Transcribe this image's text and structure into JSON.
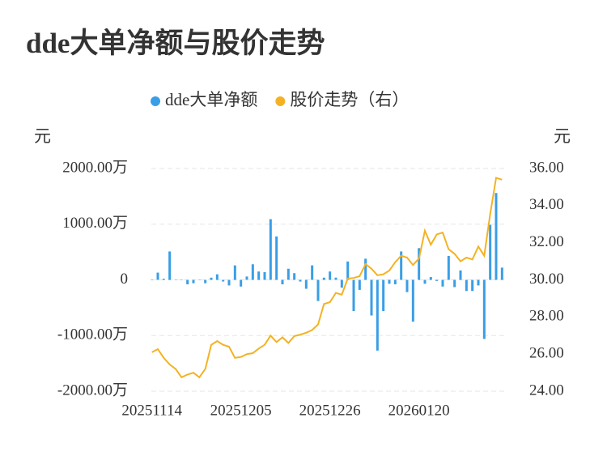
{
  "chart_data": {
    "type": "bar",
    "title": "dde大单净额与股价走势",
    "y_label": "元",
    "y2_label": "元",
    "categories": [
      "20251114",
      null,
      null,
      null,
      null,
      null,
      null,
      null,
      null,
      null,
      null,
      null,
      null,
      null,
      null,
      "20251205",
      null,
      null,
      null,
      null,
      null,
      null,
      null,
      null,
      null,
      null,
      null,
      null,
      null,
      null,
      "20251226",
      null,
      null,
      null,
      null,
      null,
      null,
      null,
      null,
      null,
      null,
      null,
      null,
      null,
      null,
      "20260120",
      null,
      null,
      null,
      null,
      null,
      null,
      null,
      null,
      null,
      null,
      null,
      null,
      null,
      null
    ],
    "series": [
      {
        "name": "dde大单净额",
        "type": "bar",
        "color": "#3a9ee6",
        "values": [
          0,
          130,
          20,
          510,
          0,
          0,
          -80,
          -60,
          0,
          -60,
          40,
          100,
          -30,
          -100,
          260,
          -120,
          60,
          280,
          150,
          140,
          1090,
          780,
          -80,
          200,
          120,
          -30,
          -160,
          260,
          -380,
          40,
          150,
          40,
          -140,
          330,
          -560,
          -180,
          380,
          -640,
          -1270,
          -560,
          -70,
          -80,
          510,
          -220,
          -750,
          570,
          -70,
          50,
          -20,
          -120,
          430,
          -130,
          170,
          -200,
          -200,
          -100,
          -1060,
          990,
          1560,
          220
        ]
      },
      {
        "name": "股价走势（右）",
        "type": "line",
        "axis": "y2",
        "color": "#f4b223",
        "values": [
          26.1,
          26.27,
          25.8,
          25.44,
          25.2,
          24.75,
          24.9,
          25.0,
          24.75,
          25.2,
          26.5,
          26.7,
          26.5,
          26.4,
          25.8,
          25.85,
          26.0,
          26.05,
          26.3,
          26.5,
          27.0,
          26.65,
          26.9,
          26.6,
          26.97,
          27.05,
          27.15,
          27.3,
          27.6,
          28.7,
          28.8,
          29.3,
          29.2,
          30.07,
          30.1,
          30.2,
          30.85,
          30.6,
          30.25,
          30.3,
          30.5,
          30.95,
          31.3,
          31.2,
          30.8,
          31.15,
          32.65,
          31.9,
          32.45,
          32.55,
          31.65,
          31.4,
          31.0,
          31.2,
          31.1,
          31.8,
          31.3,
          33.55,
          35.5,
          35.4
        ]
      }
    ],
    "ylim": [
      -2000,
      2000
    ],
    "yticks": [
      {
        "value": -2000,
        "label": "-2000.00万"
      },
      {
        "value": -1000,
        "label": "-1000.00万"
      },
      0,
      {
        "value": 1000,
        "label": "1000.00万"
      },
      {
        "value": 2000,
        "label": "2000.00万"
      }
    ],
    "y2lim": [
      24,
      36
    ],
    "y2ticks": [
      {
        "value": 24,
        "label": "24.00"
      },
      {
        "value": 26,
        "label": "26.00"
      },
      {
        "value": 28,
        "label": "28.00"
      },
      {
        "value": 30,
        "label": "30.00"
      },
      {
        "value": 32,
        "label": "32.00"
      },
      {
        "value": 34,
        "label": "34.00"
      },
      {
        "value": 36,
        "label": "36.00"
      }
    ],
    "grid": true
  }
}
